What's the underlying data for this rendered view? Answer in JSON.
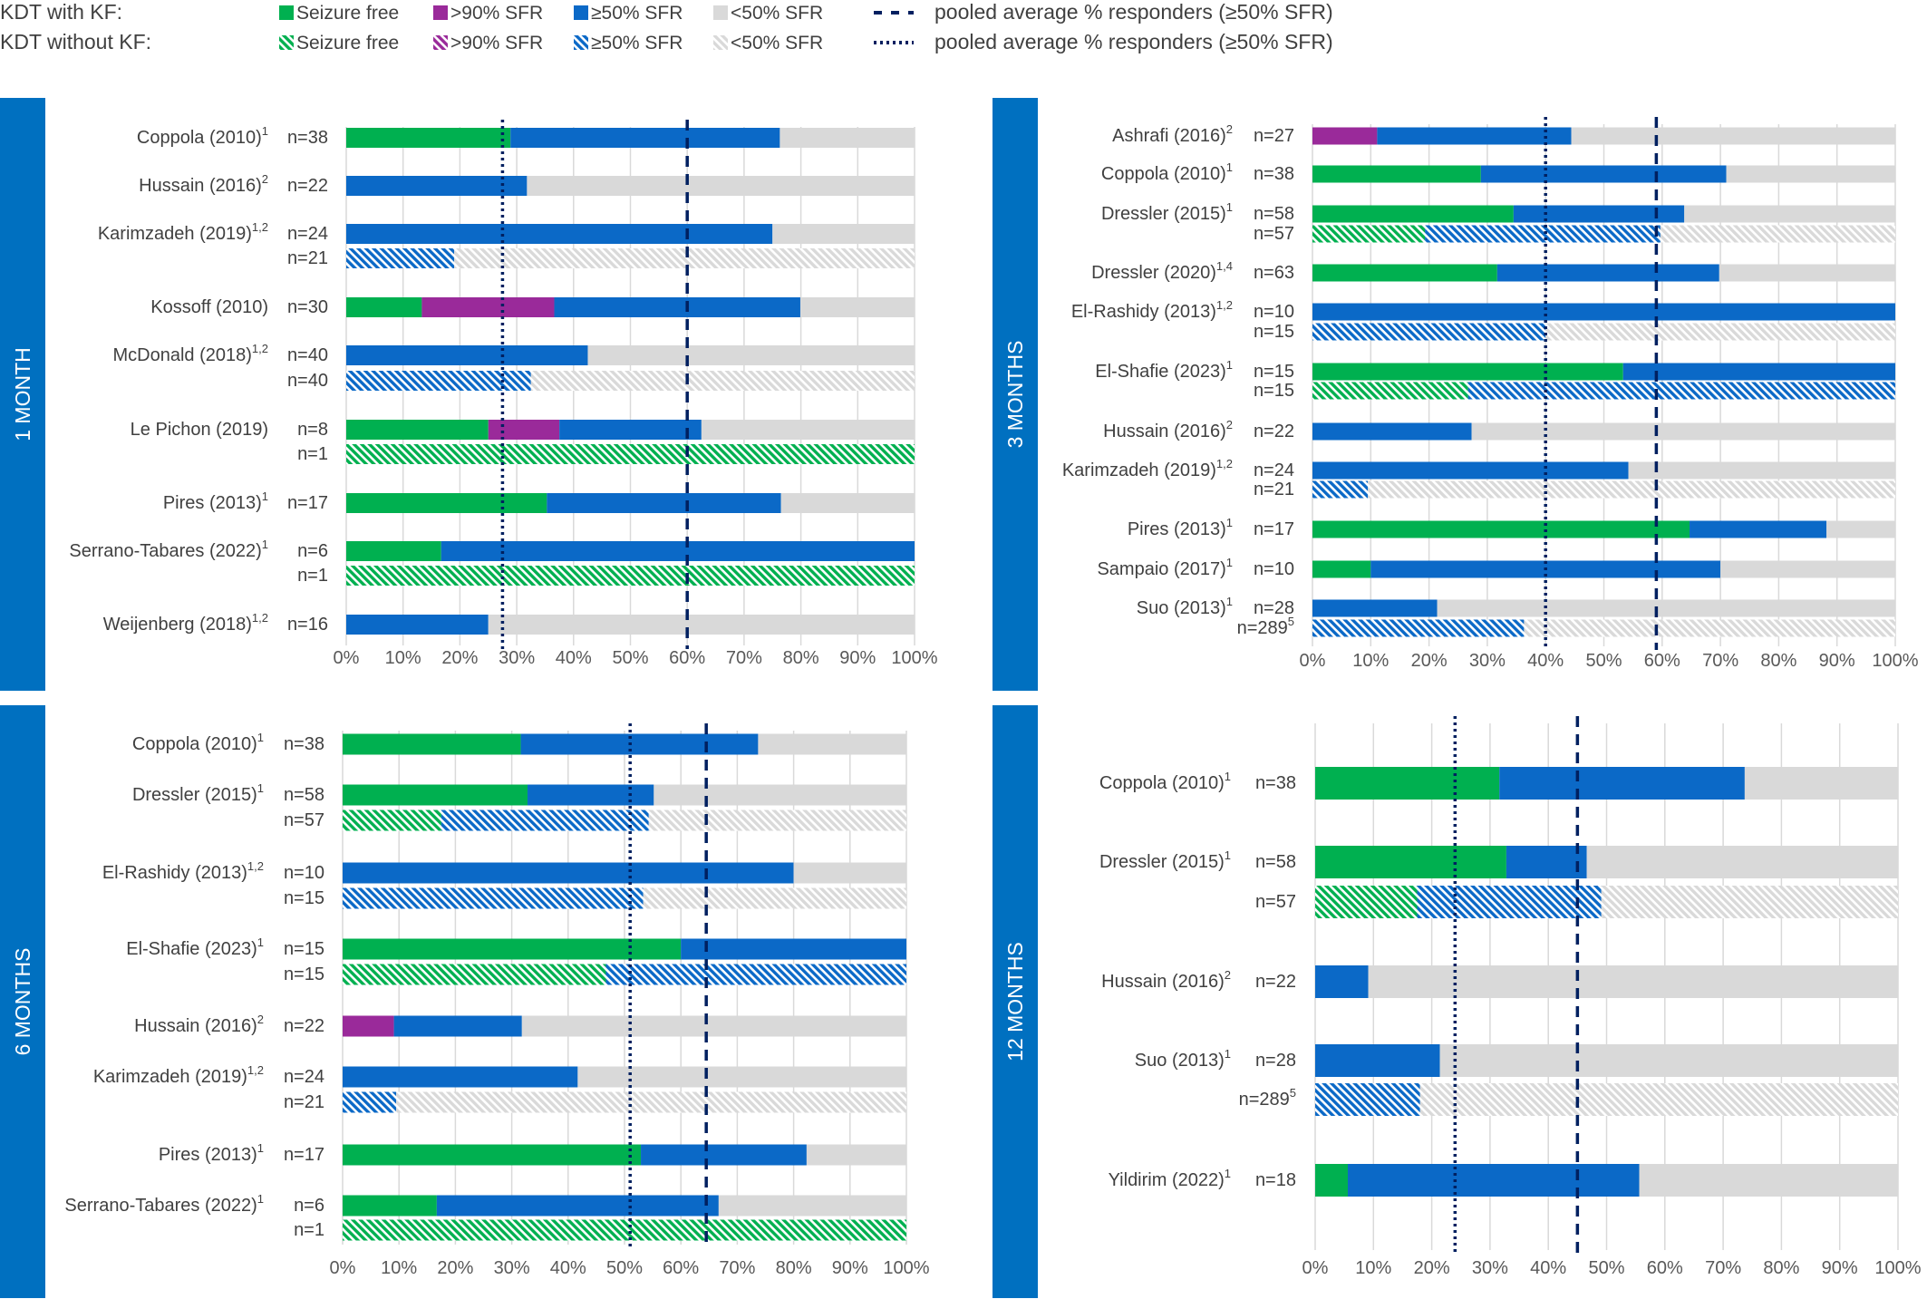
{
  "colors": {
    "seizure_free": "#00B050",
    "gt90": "#9A2A9A",
    "ge50": "#0B69C7",
    "lt50": "#D9D9D9",
    "band": "#0070C0",
    "pooled": "#002060",
    "grid": "#D9D9D9"
  },
  "legend": {
    "rows": [
      {
        "label": "KDT with KF:",
        "style": "solid",
        "line_label": "pooled average % responders (≥50% SFR)",
        "line_style": "dashed"
      },
      {
        "label": "KDT without KF:",
        "style": "hatched",
        "line_label": "pooled average % responders (≥50% SFR)",
        "line_style": "dotted"
      }
    ],
    "categories": [
      {
        "key": "seizure_free",
        "label": "Seizure free"
      },
      {
        "key": "gt90",
        "label": ">90% SFR"
      },
      {
        "key": "ge50",
        "label": "≥50% SFR"
      },
      {
        "key": "lt50",
        "label": "<50% SFR"
      }
    ]
  },
  "chart_data": [
    {
      "type": "bar",
      "panel_label": "1 MONTH",
      "x_ticks": [
        "0%",
        "10%",
        "20%",
        "30%",
        "40%",
        "50%",
        "60%",
        "70%",
        "80%",
        "90%",
        "100%"
      ],
      "xlim": [
        0,
        100
      ],
      "pooled_dashed": 60,
      "pooled_dotted": 27.5,
      "studies": [
        {
          "name": "Coppola (2010)",
          "sup": "1",
          "bars": [
            {
              "n": "n=38",
              "hatched": false,
              "seizure_free": 28.9,
              "gt90": 0,
              "ge50": 47.4,
              "lt50": 23.7
            }
          ]
        },
        {
          "name": "Hussain (2016)",
          "sup": "2",
          "bars": [
            {
              "n": "n=22",
              "hatched": false,
              "seizure_free": 0,
              "gt90": 0,
              "ge50": 31.8,
              "lt50": 68.2
            }
          ]
        },
        {
          "name": "Karimzadeh (2019)",
          "sup": "1,2",
          "bars": [
            {
              "n": "n=24",
              "hatched": false,
              "seizure_free": 0,
              "gt90": 0,
              "ge50": 75,
              "lt50": 25
            },
            {
              "n": "n=21",
              "hatched": true,
              "seizure_free": 0,
              "gt90": 0,
              "ge50": 19,
              "lt50": 81
            }
          ]
        },
        {
          "name": "Kossoff (2010)",
          "sup": "",
          "bars": [
            {
              "n": "n=30",
              "hatched": false,
              "seizure_free": 13.3,
              "gt90": 23.3,
              "ge50": 43.3,
              "lt50": 20.1
            }
          ]
        },
        {
          "name": "McDonald (2018)",
          "sup": "1,2",
          "bars": [
            {
              "n": "n=40",
              "hatched": false,
              "seizure_free": 0,
              "gt90": 0,
              "ge50": 42.5,
              "lt50": 57.5
            },
            {
              "n": "n=40",
              "hatched": true,
              "seizure_free": 0,
              "gt90": 0,
              "ge50": 32.5,
              "lt50": 67.5
            }
          ]
        },
        {
          "name": "Le Pichon (2019)",
          "sup": "",
          "bars": [
            {
              "n": "n=8",
              "hatched": false,
              "seizure_free": 25,
              "gt90": 12.5,
              "ge50": 25,
              "lt50": 37.5
            },
            {
              "n": "n=1",
              "hatched": true,
              "seizure_free": 100,
              "gt90": 0,
              "ge50": 0,
              "lt50": 0
            }
          ]
        },
        {
          "name": "Pires (2013)",
          "sup": "1",
          "bars": [
            {
              "n": "n=17",
              "hatched": false,
              "seizure_free": 35.3,
              "gt90": 0,
              "ge50": 41.2,
              "lt50": 23.5
            }
          ]
        },
        {
          "name": "Serrano-Tabares (2022)",
          "sup": "1",
          "bars": [
            {
              "n": "n=6",
              "hatched": false,
              "seizure_free": 16.7,
              "gt90": 0,
              "ge50": 83.3,
              "lt50": 0
            },
            {
              "n": "n=1",
              "hatched": true,
              "seizure_free": 100,
              "gt90": 0,
              "ge50": 0,
              "lt50": 0
            }
          ]
        },
        {
          "name": "Weijenberg (2018)",
          "sup": "1,2",
          "bars": [
            {
              "n": "n=16",
              "hatched": false,
              "seizure_free": 0,
              "gt90": 0,
              "ge50": 25,
              "lt50": 75
            }
          ]
        }
      ]
    },
    {
      "type": "bar",
      "panel_label": "3 MONTHS",
      "x_ticks": [
        "0%",
        "10%",
        "20%",
        "30%",
        "40%",
        "50%",
        "60%",
        "70%",
        "80%",
        "90%",
        "100%"
      ],
      "xlim": [
        0,
        100
      ],
      "pooled_dashed": 59,
      "pooled_dotted": 40,
      "studies": [
        {
          "name": "Ashrafi (2016)",
          "sup": "2",
          "bars": [
            {
              "n": "n=27",
              "hatched": false,
              "seizure_free": 0,
              "gt90": 11.1,
              "ge50": 33.3,
              "lt50": 55.6
            }
          ]
        },
        {
          "name": "Coppola (2010)",
          "sup": "1",
          "bars": [
            {
              "n": "n=38",
              "hatched": false,
              "seizure_free": 28.9,
              "gt90": 0,
              "ge50": 42.1,
              "lt50": 29
            }
          ]
        },
        {
          "name": "Dressler (2015)",
          "sup": "1",
          "bars": [
            {
              "n": "n=58",
              "hatched": false,
              "seizure_free": 34.5,
              "gt90": 0,
              "ge50": 29.3,
              "lt50": 36.2
            },
            {
              "n": "n=57",
              "hatched": true,
              "seizure_free": 19.3,
              "gt90": 0,
              "ge50": 40.4,
              "lt50": 40.3
            }
          ]
        },
        {
          "name": "Dressler (2020)",
          "sup": "1,4",
          "bars": [
            {
              "n": "n=63",
              "hatched": false,
              "seizure_free": 31.7,
              "gt90": 0,
              "ge50": 38.1,
              "lt50": 30.2
            }
          ]
        },
        {
          "name": "El-Rashidy (2013)",
          "sup": "1,2",
          "bars": [
            {
              "n": "n=10",
              "hatched": false,
              "seizure_free": 0,
              "gt90": 0,
              "ge50": 100,
              "lt50": 0
            },
            {
              "n": "n=15",
              "hatched": true,
              "seizure_free": 0,
              "gt90": 0,
              "ge50": 40,
              "lt50": 60
            }
          ]
        },
        {
          "name": "El-Shafie (2023)",
          "sup": "1",
          "bars": [
            {
              "n": "n=15",
              "hatched": false,
              "seizure_free": 53.3,
              "gt90": 0,
              "ge50": 46.7,
              "lt50": 0
            },
            {
              "n": "n=15",
              "hatched": true,
              "seizure_free": 26.7,
              "gt90": 0,
              "ge50": 73.3,
              "lt50": 0
            }
          ]
        },
        {
          "name": "Hussain (2016)",
          "sup": "2",
          "bars": [
            {
              "n": "n=22",
              "hatched": false,
              "seizure_free": 0,
              "gt90": 0,
              "ge50": 27.3,
              "lt50": 72.7
            }
          ]
        },
        {
          "name": "Karimzadeh (2019)",
          "sup": "1,2",
          "bars": [
            {
              "n": "n=24",
              "hatched": false,
              "seizure_free": 0,
              "gt90": 0,
              "ge50": 54.2,
              "lt50": 45.8
            },
            {
              "n": "n=21",
              "hatched": true,
              "seizure_free": 0,
              "gt90": 0,
              "ge50": 9.5,
              "lt50": 90.5
            }
          ]
        },
        {
          "name": "Pires (2013)",
          "sup": "1",
          "bars": [
            {
              "n": "n=17",
              "hatched": false,
              "seizure_free": 64.7,
              "gt90": 0,
              "ge50": 23.5,
              "lt50": 11.8
            }
          ]
        },
        {
          "name": "Sampaio (2017)",
          "sup": "1",
          "bars": [
            {
              "n": "n=10",
              "hatched": false,
              "seizure_free": 10,
              "gt90": 0,
              "ge50": 60,
              "lt50": 30
            }
          ]
        },
        {
          "name": "Suo (2013)",
          "sup": "1",
          "bars": [
            {
              "n": "n=28",
              "hatched": false,
              "seizure_free": 0,
              "gt90": 0,
              "ge50": 21.4,
              "lt50": 78.6
            },
            {
              "n": "n=289",
              "n_sup": "5",
              "hatched": true,
              "seizure_free": 0,
              "gt90": 0,
              "ge50": 36.3,
              "lt50": 63.7
            }
          ]
        }
      ]
    },
    {
      "type": "bar",
      "panel_label": "6 MONTHS",
      "x_ticks": [
        "0%",
        "10%",
        "20%",
        "30%",
        "40%",
        "50%",
        "60%",
        "70%",
        "80%",
        "90%",
        "100%"
      ],
      "xlim": [
        0,
        100
      ],
      "pooled_dashed": 64.5,
      "pooled_dotted": 51,
      "studies": [
        {
          "name": "Coppola (2010)",
          "sup": "1",
          "bars": [
            {
              "n": "n=38",
              "hatched": false,
              "seizure_free": 31.6,
              "gt90": 0,
              "ge50": 42.1,
              "lt50": 26.3
            }
          ]
        },
        {
          "name": "Dressler (2015)",
          "sup": "1",
          "bars": [
            {
              "n": "n=58",
              "hatched": false,
              "seizure_free": 32.8,
              "gt90": 0,
              "ge50": 22.4,
              "lt50": 44.8
            },
            {
              "n": "n=57",
              "hatched": true,
              "seizure_free": 17.5,
              "gt90": 0,
              "ge50": 36.8,
              "lt50": 45.7
            }
          ]
        },
        {
          "name": "El-Rashidy (2013)",
          "sup": "1,2",
          "bars": [
            {
              "n": "n=10",
              "hatched": false,
              "seizure_free": 0,
              "gt90": 0,
              "ge50": 80,
              "lt50": 20
            },
            {
              "n": "n=15",
              "hatched": true,
              "seizure_free": 0,
              "gt90": 0,
              "ge50": 53.3,
              "lt50": 46.7
            }
          ]
        },
        {
          "name": "El-Shafie (2023)",
          "sup": "1",
          "bars": [
            {
              "n": "n=15",
              "hatched": false,
              "seizure_free": 60,
              "gt90": 0,
              "ge50": 40,
              "lt50": 0
            },
            {
              "n": "n=15",
              "hatched": true,
              "seizure_free": 46.7,
              "gt90": 0,
              "ge50": 53.3,
              "lt50": 0
            }
          ]
        },
        {
          "name": "Hussain (2016)",
          "sup": "2",
          "bars": [
            {
              "n": "n=22",
              "hatched": false,
              "seizure_free": 0,
              "gt90": 9.1,
              "ge50": 22.7,
              "lt50": 68.2
            }
          ]
        },
        {
          "name": "Karimzadeh (2019)",
          "sup": "1,2",
          "bars": [
            {
              "n": "n=24",
              "hatched": false,
              "seizure_free": 0,
              "gt90": 0,
              "ge50": 41.7,
              "lt50": 58.3
            },
            {
              "n": "n=21",
              "hatched": true,
              "seizure_free": 0,
              "gt90": 0,
              "ge50": 9.5,
              "lt50": 90.5
            }
          ]
        },
        {
          "name": "Pires (2013)",
          "sup": "1",
          "bars": [
            {
              "n": "n=17",
              "hatched": false,
              "seizure_free": 52.9,
              "gt90": 0,
              "ge50": 29.4,
              "lt50": 17.7
            }
          ]
        },
        {
          "name": "Serrano-Tabares (2022)",
          "sup": "1",
          "bars": [
            {
              "n": "n=6",
              "hatched": false,
              "seizure_free": 16.7,
              "gt90": 0,
              "ge50": 50,
              "lt50": 33.3
            },
            {
              "n": "n=1",
              "hatched": true,
              "seizure_free": 100,
              "gt90": 0,
              "ge50": 0,
              "lt50": 0
            }
          ]
        }
      ]
    },
    {
      "type": "bar",
      "panel_label": "12 MONTHS",
      "x_ticks": [
        "0%",
        "10%",
        "20%",
        "30%",
        "40%",
        "50%",
        "60%",
        "70%",
        "80%",
        "90%",
        "100%"
      ],
      "xlim": [
        0,
        100
      ],
      "pooled_dashed": 45,
      "pooled_dotted": 24,
      "studies": [
        {
          "name": "Coppola (2010)",
          "sup": "1",
          "bars": [
            {
              "n": "n=38",
              "hatched": false,
              "seizure_free": 31.6,
              "gt90": 0,
              "ge50": 42.1,
              "lt50": 26.3
            }
          ]
        },
        {
          "name": "Dressler (2015)",
          "sup": "1",
          "bars": [
            {
              "n": "n=58",
              "hatched": false,
              "seizure_free": 32.8,
              "gt90": 0,
              "ge50": 13.8,
              "lt50": 53.4
            },
            {
              "n": "n=57",
              "hatched": true,
              "seizure_free": 17.5,
              "gt90": 0,
              "ge50": 31.6,
              "lt50": 50.9
            }
          ]
        },
        {
          "name": "Hussain (2016)",
          "sup": "2",
          "bars": [
            {
              "n": "n=22",
              "hatched": false,
              "seizure_free": 0,
              "gt90": 0,
              "ge50": 9.1,
              "lt50": 90.9
            }
          ]
        },
        {
          "name": "Suo (2013)",
          "sup": "1",
          "bars": [
            {
              "n": "n=28",
              "hatched": false,
              "seizure_free": 0,
              "gt90": 0,
              "ge50": 21.4,
              "lt50": 78.6
            },
            {
              "n": "n=289",
              "n_sup": "5",
              "hatched": true,
              "seizure_free": 0,
              "gt90": 0,
              "ge50": 18,
              "lt50": 82
            }
          ]
        },
        {
          "name": "Yildirim (2022)",
          "sup": "1",
          "bars": [
            {
              "n": "n=18",
              "hatched": false,
              "seizure_free": 5.6,
              "gt90": 0,
              "ge50": 50,
              "lt50": 44.4
            }
          ]
        }
      ]
    }
  ]
}
